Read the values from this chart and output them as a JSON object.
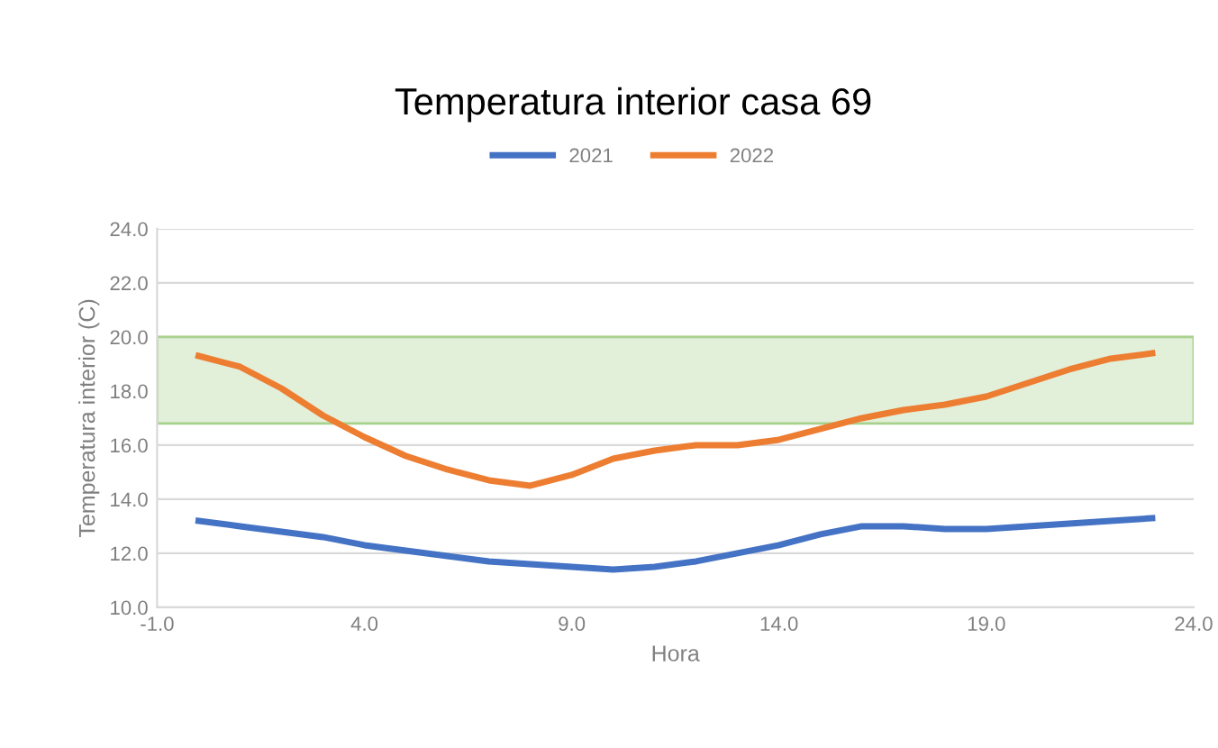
{
  "chart_data": {
    "type": "line",
    "title": "Temperatura interior casa 69",
    "xlabel": "Hora",
    "ylabel": "Temperatura interior (C)",
    "x": [
      0,
      1,
      2,
      3,
      4,
      5,
      6,
      7,
      8,
      9,
      10,
      11,
      12,
      13,
      14,
      15,
      16,
      17,
      18,
      19,
      20,
      21,
      22,
      23
    ],
    "series": [
      {
        "name": "2021",
        "color": "#4472c4",
        "values": [
          13.2,
          13.0,
          12.8,
          12.6,
          12.3,
          12.1,
          11.9,
          11.7,
          11.6,
          11.5,
          11.4,
          11.5,
          11.7,
          12.0,
          12.3,
          12.7,
          13.0,
          13.0,
          12.9,
          12.9,
          13.0,
          13.1,
          13.2,
          13.3
        ]
      },
      {
        "name": "2022",
        "color": "#ed7d31",
        "values": [
          19.3,
          18.9,
          18.1,
          17.1,
          16.3,
          15.6,
          15.1,
          14.7,
          14.5,
          14.9,
          15.5,
          15.8,
          16.0,
          16.0,
          16.2,
          16.6,
          17.0,
          17.3,
          17.5,
          17.8,
          18.3,
          18.8,
          19.2,
          19.4
        ]
      }
    ],
    "xlim": [
      -1,
      24
    ],
    "xticks": [
      {
        "value": -1,
        "label": "-1.0"
      },
      {
        "value": 4,
        "label": "4.0"
      },
      {
        "value": 9,
        "label": "9.0"
      },
      {
        "value": 14,
        "label": "14.0"
      },
      {
        "value": 19,
        "label": "19.0"
      },
      {
        "value": 24,
        "label": "24.0"
      }
    ],
    "ylim": [
      10,
      24
    ],
    "yticks": [
      {
        "value": 10,
        "label": "10.0"
      },
      {
        "value": 12,
        "label": "12.0"
      },
      {
        "value": 14,
        "label": "14.0"
      },
      {
        "value": 16,
        "label": "16.0"
      },
      {
        "value": 18,
        "label": "18.0"
      },
      {
        "value": 20,
        "label": "20.0"
      },
      {
        "value": 22,
        "label": "22.0"
      },
      {
        "value": 24,
        "label": "24.0"
      }
    ],
    "bands": [
      {
        "axis": "y",
        "from": 16.8,
        "to": 20,
        "color": "#e2efd9"
      }
    ],
    "grid": "y",
    "legend": "top",
    "marker": "none",
    "line_style": "solid"
  }
}
